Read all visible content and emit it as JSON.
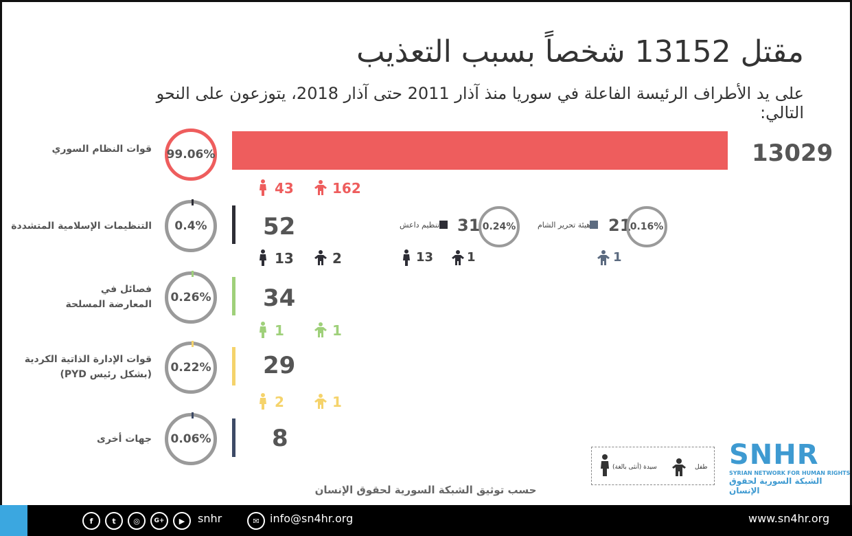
{
  "title": "مقتل 13152 شخصاً بسبب التعذيب",
  "subtitle": "على يد الأطراف الرئيسة الفاعلة في سوريا منذ آذار 2011 حتى آذار 2018،  يتوزعون على النحو التالي:",
  "colors": {
    "regime": "#ee5d5d",
    "extremist": "#2d2d35",
    "opposition": "#9fd07a",
    "kurdish": "#f5d36b",
    "others": "#3d4a66"
  },
  "chart_data": {
    "type": "bar",
    "categories": [
      "قوات النظام السوري",
      "التنظيمات الإسلامية المتشددة",
      "فصائل في المعارضة المسلحة",
      "قوات الإدارة الذاتية الكردية (بشكل رئيس PYD)",
      "جهات أخرى"
    ],
    "values": [
      13029,
      52,
      34,
      29,
      8
    ],
    "percent_labels": [
      "99.06%",
      "0.4%",
      "0.26%",
      "0.22%",
      "0.06%"
    ],
    "percentages": [
      99.06,
      0.4,
      0.26,
      0.22,
      0.06
    ],
    "women": [
      43,
      13,
      1,
      2,
      null
    ],
    "children": [
      162,
      2,
      1,
      1,
      null
    ],
    "extremist_breakdown": [
      {
        "name": "تنظيم داعش",
        "value": 31,
        "percent": "0.24%",
        "women": 13,
        "children": 1
      },
      {
        "name": "هيئة تحرير الشام",
        "value": 21,
        "percent": "0.16%",
        "women": null,
        "children": 1
      }
    ]
  },
  "rows": [
    {
      "label": "قوات النظام السوري",
      "label2": "",
      "pct": "99.06%",
      "value": "13029",
      "women": "43",
      "children": "162"
    },
    {
      "label": "التنظيمات الإسلامية المتشددة",
      "label2": "",
      "pct": "0.4%",
      "value": "52",
      "women": "13",
      "children": "2"
    },
    {
      "label": "فصائل في",
      "label2": "المعارضة المسلحة",
      "pct": "0.26%",
      "value": "34",
      "women": "1",
      "children": "1"
    },
    {
      "label": "قوات الإدارة الذاتية الكردية",
      "label2": "(بشكل رئيس PYD)",
      "pct": "0.22%",
      "value": "29",
      "women": "2",
      "children": "1"
    },
    {
      "label": "جهات أخرى",
      "label2": "",
      "pct": "0.06%",
      "value": "8",
      "women": "",
      "children": ""
    }
  ],
  "breakdown": {
    "isis": {
      "name": "تنظيم داعش",
      "value": "31",
      "pct": "0.24%",
      "women": "13",
      "children": "1"
    },
    "hts": {
      "name": "هيئة تحرير الشام",
      "value": "21",
      "pct": "0.16%",
      "children": "1"
    }
  },
  "legend": {
    "woman": "سيدة (أنثى بالغة)",
    "child": "طفل"
  },
  "source": "حسب توثيق الشبكة السورية لحقوق الإنسان",
  "logo": {
    "name": "SNHR",
    "en": "SYRIAN NETWORK FOR HUMAN RIGHTS",
    "ar": "الشبكة السورية لحقوق الإنسان"
  },
  "footer": {
    "handle": "snhr",
    "email": "info@sn4hr.org",
    "website": "www.sn4hr.org",
    "icons": [
      "facebook-icon",
      "twitter-icon",
      "instagram-icon",
      "google-plus-icon",
      "youtube-icon"
    ]
  }
}
